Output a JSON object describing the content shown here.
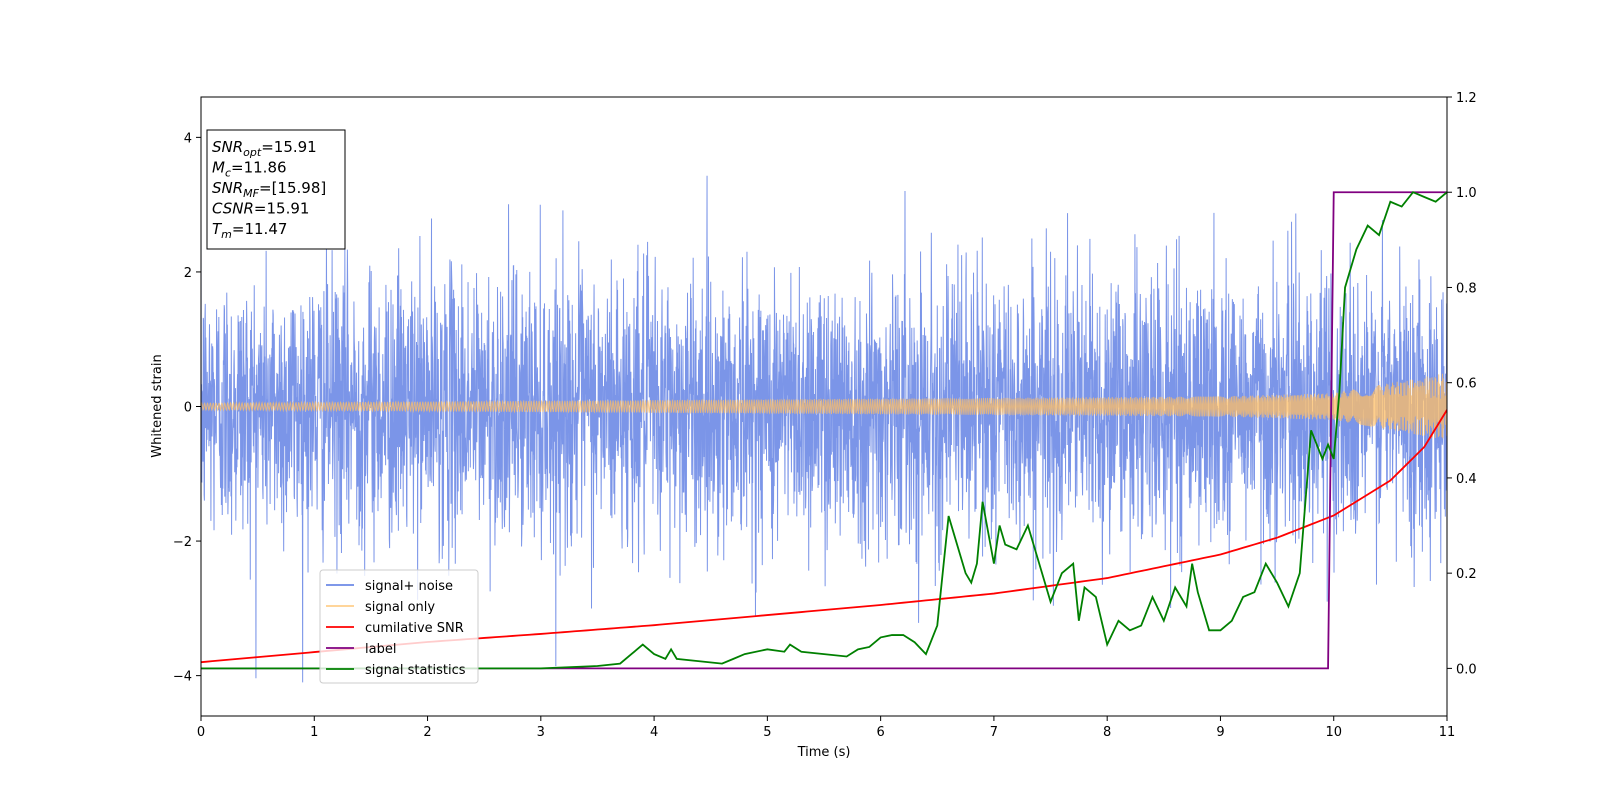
{
  "chart_data": {
    "type": "line",
    "title": "",
    "xlabel": "Time (s)",
    "ylabel": "Whitened strain",
    "xlim": [
      0,
      11
    ],
    "ylim": [
      -4.6,
      4.6
    ],
    "y2lim": [
      -0.1,
      1.2
    ],
    "xticks": [
      "0",
      "1",
      "2",
      "3",
      "4",
      "5",
      "6",
      "7",
      "8",
      "9",
      "10",
      "11"
    ],
    "yticks": [
      "−4",
      "−2",
      "0",
      "2",
      "4"
    ],
    "y2ticks": [
      "0.0",
      "0.2",
      "0.4",
      "0.6",
      "0.8",
      "1.0",
      "1.2"
    ],
    "grid": false,
    "legend_position": "lower-left",
    "colors": {
      "noise": "#6d8ae6",
      "signal": "#ffbf66",
      "csnr": "#ff0000",
      "label": "#800080",
      "stat": "#008000"
    },
    "annotation": {
      "lines": [
        {
          "var": "SNR",
          "sub": "opt",
          "value": "=15.91"
        },
        {
          "var": "M",
          "sub": "c",
          "value": "=11.86"
        },
        {
          "var": "SNR",
          "sub": "MF",
          "value": "=[15.98]"
        },
        {
          "var": "CSNR",
          "sub": "",
          "value": "=15.91"
        },
        {
          "var": "T",
          "sub": "m",
          "value": "=11.47"
        }
      ]
    },
    "series": [
      {
        "name": "signal+ noise",
        "key": "noise",
        "axis": "left",
        "style": "noise-band",
        "envelope_std": 1.0,
        "spike_max": 4.1
      },
      {
        "name": "signal only",
        "key": "signal",
        "axis": "left",
        "style": "chirp",
        "amplitude": [
          [
            0,
            0.05
          ],
          [
            9,
            0.15
          ],
          [
            10,
            0.2
          ],
          [
            11,
            0.5
          ]
        ]
      },
      {
        "name": "cumilative SNR",
        "key": "csnr",
        "axis": "left",
        "x": [
          0,
          1,
          2,
          3,
          4,
          5,
          6,
          7,
          8,
          9,
          9.5,
          10,
          10.5,
          10.8,
          11
        ],
        "y": [
          -3.8,
          -3.65,
          -3.5,
          -3.38,
          -3.25,
          -3.1,
          -2.95,
          -2.78,
          -2.55,
          -2.2,
          -1.95,
          -1.62,
          -1.1,
          -0.6,
          -0.05
        ]
      },
      {
        "name": "label",
        "key": "label",
        "axis": "right",
        "x": [
          0,
          9.95,
          10.0,
          11
        ],
        "y": [
          0.0,
          0.0,
          1.0,
          1.0
        ]
      },
      {
        "name": "signal statistics",
        "key": "stat",
        "axis": "right",
        "x": [
          0,
          3.0,
          3.5,
          3.7,
          3.8,
          3.85,
          3.9,
          4.0,
          4.1,
          4.15,
          4.2,
          4.4,
          4.6,
          4.7,
          4.8,
          5.0,
          5.15,
          5.2,
          5.3,
          5.5,
          5.7,
          5.8,
          5.9,
          6.0,
          6.1,
          6.2,
          6.3,
          6.4,
          6.5,
          6.6,
          6.65,
          6.7,
          6.75,
          6.8,
          6.85,
          6.9,
          7.0,
          7.05,
          7.1,
          7.2,
          7.3,
          7.4,
          7.5,
          7.6,
          7.7,
          7.75,
          7.8,
          7.9,
          8.0,
          8.1,
          8.2,
          8.3,
          8.4,
          8.5,
          8.6,
          8.7,
          8.75,
          8.8,
          8.9,
          9.0,
          9.1,
          9.2,
          9.3,
          9.4,
          9.5,
          9.6,
          9.7,
          9.8,
          9.9,
          9.95,
          10.0,
          10.05,
          10.1,
          10.2,
          10.3,
          10.4,
          10.5,
          10.6,
          10.7,
          10.8,
          10.9,
          11.0
        ],
        "y": [
          0.0,
          0.0,
          0.005,
          0.01,
          0.03,
          0.04,
          0.05,
          0.03,
          0.02,
          0.04,
          0.02,
          0.015,
          0.01,
          0.02,
          0.03,
          0.04,
          0.035,
          0.05,
          0.035,
          0.03,
          0.025,
          0.04,
          0.045,
          0.065,
          0.07,
          0.07,
          0.055,
          0.03,
          0.09,
          0.32,
          0.28,
          0.24,
          0.2,
          0.18,
          0.22,
          0.35,
          0.22,
          0.3,
          0.26,
          0.25,
          0.3,
          0.22,
          0.14,
          0.2,
          0.22,
          0.1,
          0.17,
          0.15,
          0.05,
          0.1,
          0.08,
          0.09,
          0.15,
          0.1,
          0.17,
          0.13,
          0.22,
          0.16,
          0.08,
          0.08,
          0.1,
          0.15,
          0.16,
          0.22,
          0.18,
          0.13,
          0.2,
          0.5,
          0.44,
          0.47,
          0.44,
          0.58,
          0.8,
          0.88,
          0.93,
          0.91,
          0.98,
          0.97,
          1.0,
          0.99,
          0.98,
          1.0
        ]
      }
    ]
  }
}
